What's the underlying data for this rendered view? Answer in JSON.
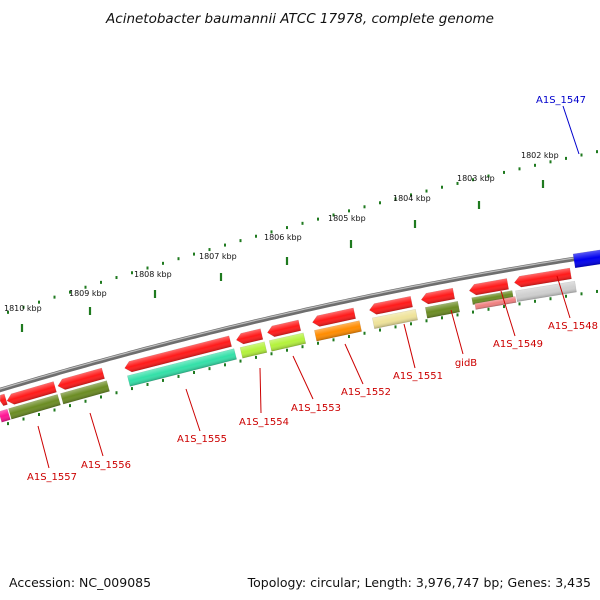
{
  "title": "Acinetobacter baumannii ATCC 17978, complete genome",
  "footer": {
    "accession": "Accession: NC_009085",
    "summary": "Topology: circular; Length: 3,976,747 bp; Genes: 3,435"
  },
  "colors": {
    "backbone": "#8a8a8a",
    "tick": "#1f7a1f",
    "gene_label": "#cc0000",
    "highlight_label": "#0000cc",
    "gene_red": "#ff1a1a",
    "olive": "#6b8c23",
    "aqua": "#33e0a8",
    "lime": "#b4f23c",
    "orange": "#ff8c00",
    "khaki": "#efe39a",
    "salmon": "#f08080",
    "gray": "#cfcfcf",
    "blue": "#0000ee",
    "magenta": "#ff1493"
  },
  "scale_labels": [
    "1810 kbp",
    "1809 kbp",
    "1808 kbp",
    "1807 kbp",
    "1806 kbp",
    "1805 kbp",
    "1804 kbp",
    "1803 kbp",
    "1802 kbp"
  ],
  "gene_labels": [
    {
      "id": "a1s-1547",
      "text": "A1S_1547",
      "highlight": true
    },
    {
      "id": "a1s-1548",
      "text": "A1S_1548"
    },
    {
      "id": "a1s-1549",
      "text": "A1S_1549"
    },
    {
      "id": "gidb",
      "text": "gidB"
    },
    {
      "id": "a1s-1551",
      "text": "A1S_1551"
    },
    {
      "id": "a1s-1552",
      "text": "A1S_1552"
    },
    {
      "id": "a1s-1553",
      "text": "A1S_1553"
    },
    {
      "id": "a1s-1554",
      "text": "A1S_1554"
    },
    {
      "id": "a1s-1555",
      "text": "A1S_1555"
    },
    {
      "id": "a1s-1556",
      "text": "A1S_1556"
    },
    {
      "id": "a1s-1557",
      "text": "A1S_1557"
    }
  ]
}
